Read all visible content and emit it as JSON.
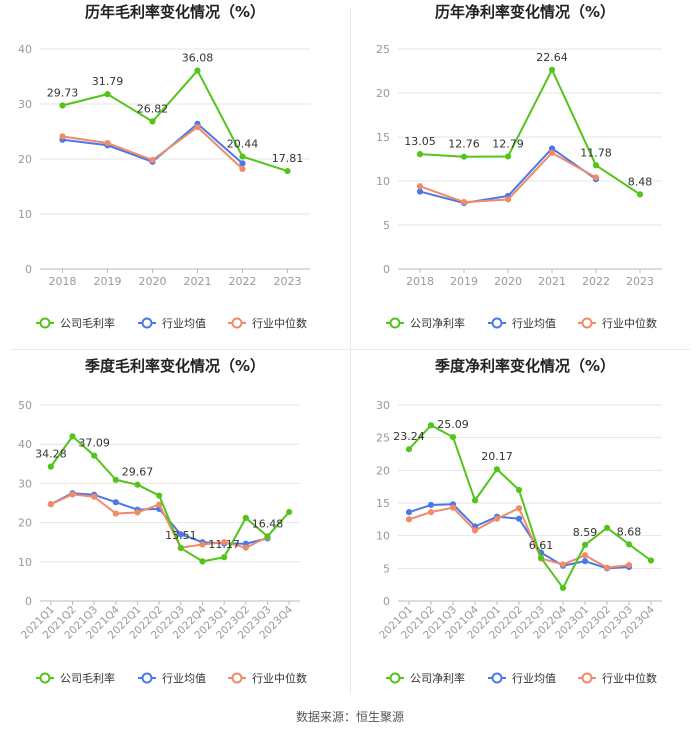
{
  "colors": {
    "company": "#52c41a",
    "avg": "#4b78e8",
    "median": "#f08a68",
    "axis": "#999999",
    "grid": "#e6e6e6",
    "label": "#333333"
  },
  "legend": [
    "公司毛利率",
    "行业均值",
    "行业中位数"
  ],
  "legend_net": [
    "公司净利率",
    "行业均值",
    "行业中位数"
  ],
  "source": "数据来源：恒生聚源",
  "chart_data": [
    {
      "type": "line",
      "title": "历年毛利率变化情况（%）",
      "categories": [
        "2018",
        "2019",
        "2020",
        "2021",
        "2022",
        "2023"
      ],
      "ylim": [
        0,
        40
      ],
      "yticks": [
        0,
        10,
        20,
        30,
        40
      ],
      "series": [
        {
          "name": "公司毛利率",
          "values": [
            29.73,
            31.79,
            26.82,
            36.08,
            20.44,
            17.81
          ],
          "labels": [
            "29.73",
            "31.79",
            "26.82",
            "36.08",
            "20.44",
            "17.81"
          ]
        },
        {
          "name": "行业均值",
          "values": [
            23.5,
            22.5,
            19.5,
            26.4,
            19.2,
            null
          ]
        },
        {
          "name": "行业中位数",
          "values": [
            24.1,
            22.9,
            19.8,
            25.8,
            18.2,
            null
          ]
        }
      ]
    },
    {
      "type": "line",
      "title": "历年净利率变化情况（%）",
      "categories": [
        "2018",
        "2019",
        "2020",
        "2021",
        "2022",
        "2023"
      ],
      "ylim": [
        0,
        25
      ],
      "yticks": [
        0,
        5,
        10,
        15,
        20,
        25
      ],
      "series": [
        {
          "name": "公司净利率",
          "values": [
            13.05,
            12.76,
            12.79,
            22.64,
            11.78,
            8.48
          ],
          "labels": [
            "13.05",
            "12.76",
            "12.79",
            "22.64",
            "11.78",
            "8.48"
          ]
        },
        {
          "name": "行业均值",
          "values": [
            8.8,
            7.5,
            8.3,
            13.7,
            10.2,
            null
          ]
        },
        {
          "name": "行业中位数",
          "values": [
            9.4,
            7.6,
            7.9,
            13.2,
            10.4,
            null
          ]
        }
      ]
    },
    {
      "type": "line",
      "title": "季度毛利率变化情况（%）",
      "categories": [
        "2021Q1",
        "2021Q2",
        "2021Q3",
        "2021Q4",
        "2022Q1",
        "2022Q2",
        "2022Q3",
        "2022Q4",
        "2023Q1",
        "2023Q2",
        "2023Q3",
        "2023Q4"
      ],
      "ylim": [
        0,
        50
      ],
      "yticks": [
        0,
        10,
        20,
        30,
        40,
        50
      ],
      "series": [
        {
          "name": "公司毛利率",
          "values": [
            34.28,
            42.0,
            37.09,
            30.9,
            29.67,
            26.9,
            13.51,
            10.1,
            11.17,
            21.2,
            16.48,
            22.7
          ],
          "labels": [
            "34.28",
            "",
            "37.09",
            "",
            "29.67",
            "",
            "13.51",
            "",
            "11.17",
            "",
            "16.48",
            ""
          ]
        },
        {
          "name": "行业均值",
          "values": [
            24.7,
            27.5,
            27.1,
            25.2,
            23.3,
            23.5,
            17.0,
            15.0,
            14.7,
            14.6,
            16.0,
            null
          ]
        },
        {
          "name": "行业中位数",
          "values": [
            24.7,
            27.2,
            26.6,
            22.3,
            22.6,
            24.6,
            13.6,
            14.4,
            15.0,
            13.6,
            16.3,
            null
          ]
        }
      ]
    },
    {
      "type": "line",
      "title": "季度净利率变化情况（%）",
      "categories": [
        "2021Q1",
        "2021Q2",
        "2021Q3",
        "2021Q4",
        "2022Q1",
        "2022Q2",
        "2022Q3",
        "2022Q4",
        "2023Q1",
        "2023Q2",
        "2023Q3",
        "2023Q4"
      ],
      "ylim": [
        0,
        30
      ],
      "yticks": [
        0,
        5,
        10,
        15,
        20,
        25,
        30
      ],
      "series": [
        {
          "name": "公司净利率",
          "values": [
            23.24,
            26.9,
            25.09,
            15.4,
            20.17,
            17.0,
            6.61,
            2.0,
            8.59,
            11.2,
            8.68,
            6.2
          ],
          "labels": [
            "23.24",
            "",
            "25.09",
            "",
            "20.17",
            "",
            "6.61",
            "",
            "8.59",
            "",
            "8.68",
            ""
          ]
        },
        {
          "name": "行业均值",
          "values": [
            13.6,
            14.7,
            14.8,
            11.4,
            12.9,
            12.6,
            7.4,
            5.4,
            6.1,
            5.0,
            5.2,
            null
          ]
        },
        {
          "name": "行业中位数",
          "values": [
            12.5,
            13.6,
            14.3,
            10.8,
            12.6,
            14.2,
            6.5,
            5.6,
            7.0,
            5.1,
            5.5,
            null
          ]
        }
      ]
    }
  ]
}
